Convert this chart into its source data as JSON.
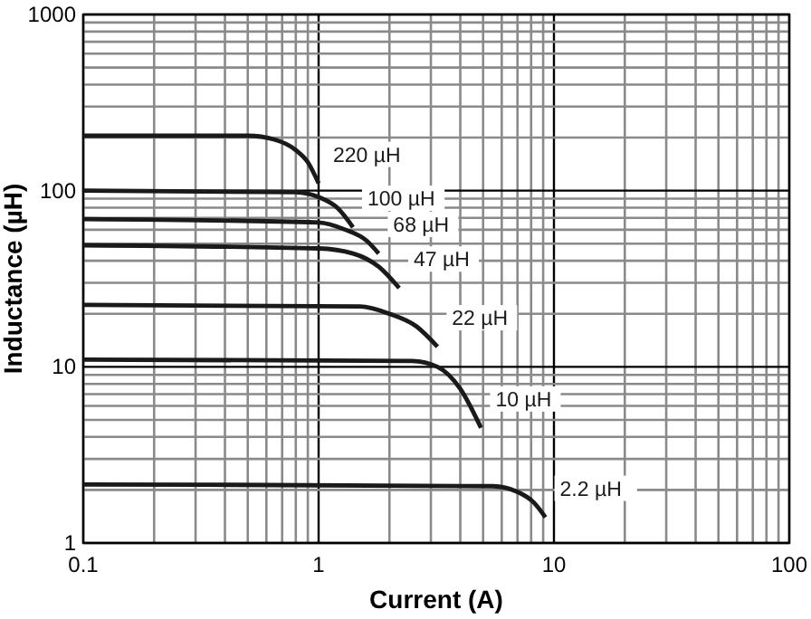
{
  "chart_data": {
    "type": "line",
    "xlabel": "Current (A)",
    "ylabel": "Inductance (µH)",
    "log": "xy",
    "grid": true,
    "line_style": "solid",
    "marker": "none",
    "xlim": [
      0.1,
      100
    ],
    "ylim": [
      1,
      1000
    ],
    "xticks": [
      0.1,
      1,
      10,
      100
    ],
    "yticks": [
      1,
      10,
      100,
      1000
    ],
    "series": [
      {
        "name": "220 µH",
        "color": "#1a1a1a",
        "x": [
          0.1,
          0.5,
          0.65,
          0.8,
          0.9,
          1.0
        ],
        "values": [
          205,
          205,
          195,
          170,
          145,
          110
        ]
      },
      {
        "name": "100 µH",
        "color": "#1a1a1a",
        "x": [
          0.1,
          0.8,
          1.0,
          1.2,
          1.4
        ],
        "values": [
          100,
          98,
          92,
          80,
          62
        ]
      },
      {
        "name": "68 µH",
        "color": "#1a1a1a",
        "x": [
          0.1,
          1.0,
          1.3,
          1.6,
          1.8
        ],
        "values": [
          69,
          66,
          60,
          52,
          44
        ]
      },
      {
        "name": "47 µH",
        "color": "#1a1a1a",
        "x": [
          0.1,
          1.0,
          1.4,
          1.8,
          2.2
        ],
        "values": [
          49,
          47,
          44,
          37,
          28
        ]
      },
      {
        "name": "22 µH",
        "color": "#1a1a1a",
        "x": [
          0.1,
          1.5,
          2.0,
          2.6,
          3.2
        ],
        "values": [
          22.5,
          22,
          20,
          17,
          13
        ]
      },
      {
        "name": "10 µH",
        "color": "#1a1a1a",
        "x": [
          0.1,
          2.5,
          3.2,
          4.0,
          4.9
        ],
        "values": [
          11,
          10.8,
          10,
          7.5,
          4.5
        ]
      },
      {
        "name": "2.2 µH",
        "color": "#1a1a1a",
        "x": [
          0.1,
          5.5,
          7,
          8.2,
          9.2
        ],
        "values": [
          2.15,
          2.1,
          1.95,
          1.7,
          1.4
        ]
      }
    ]
  }
}
